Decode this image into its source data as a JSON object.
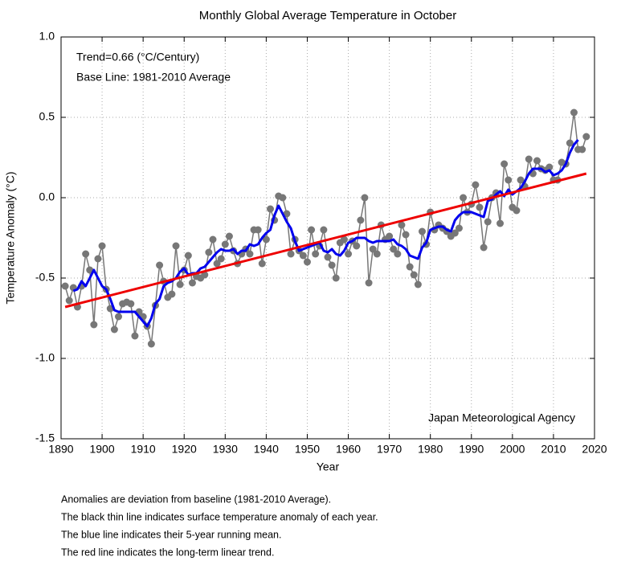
{
  "chart_data": {
    "type": "line",
    "title": "Monthly Global Average Temperature in October",
    "x_label": "Year",
    "y_label": "Temperature Anomaly (°C)",
    "annotations": [
      "Trend=0.66 (°C/Century)",
      "Base Line: 1981-2010 Average",
      "Japan Meteorological Agency"
    ],
    "notes": [
      "Anomalies are deviation from baseline (1981-2010 Average).",
      "The black thin line indicates surface temperature anomaly of each year.",
      "The blue line indicates their 5-year running mean.",
      "The red line indicates the long-term linear trend."
    ],
    "xlim": [
      1890,
      2020
    ],
    "xticks": [
      1890,
      1900,
      1910,
      1920,
      1930,
      1940,
      1950,
      1960,
      1970,
      1980,
      1990,
      2000,
      2010,
      2020
    ],
    "ylim": [
      -1.5,
      1.0
    ],
    "yticks": [
      {
        "value": -1.5,
        "label": "-1.5"
      },
      {
        "value": -1.0,
        "label": "-1.0"
      },
      -0.5,
      {
        "value": 0,
        "label": "0.0"
      },
      0.5,
      {
        "value": 1.0,
        "label": "1.0"
      }
    ],
    "grid": true,
    "x": [
      1891,
      1892,
      1893,
      1894,
      1895,
      1896,
      1897,
      1898,
      1899,
      1900,
      1901,
      1902,
      1903,
      1904,
      1905,
      1906,
      1907,
      1908,
      1909,
      1910,
      1911,
      1912,
      1913,
      1914,
      1915,
      1916,
      1917,
      1918,
      1919,
      1920,
      1921,
      1922,
      1923,
      1924,
      1925,
      1926,
      1927,
      1928,
      1929,
      1930,
      1931,
      1932,
      1933,
      1934,
      1935,
      1936,
      1937,
      1938,
      1939,
      1940,
      1941,
      1942,
      1943,
      1944,
      1945,
      1946,
      1947,
      1948,
      1949,
      1950,
      1951,
      1952,
      1953,
      1954,
      1955,
      1956,
      1957,
      1958,
      1959,
      1960,
      1961,
      1962,
      1963,
      1964,
      1965,
      1966,
      1967,
      1968,
      1969,
      1970,
      1971,
      1972,
      1973,
      1974,
      1975,
      1976,
      1977,
      1978,
      1979,
      1980,
      1981,
      1982,
      1983,
      1984,
      1985,
      1986,
      1987,
      1988,
      1989,
      1990,
      1991,
      1992,
      1993,
      1994,
      1995,
      1996,
      1997,
      1998,
      1999,
      2000,
      2001,
      2002,
      2003,
      2004,
      2005,
      2006,
      2007,
      2008,
      2009,
      2010,
      2011,
      2012,
      2013,
      2014,
      2015,
      2016,
      2017,
      2018
    ],
    "series": [
      {
        "color": "#777777",
        "markers": true,
        "values": [
          -0.55,
          -0.64,
          -0.56,
          -0.68,
          -0.55,
          -0.35,
          -0.45,
          -0.79,
          -0.38,
          -0.3,
          -0.57,
          -0.69,
          -0.82,
          -0.74,
          -0.66,
          -0.65,
          -0.66,
          -0.86,
          -0.71,
          -0.74,
          -0.8,
          -0.91,
          -0.67,
          -0.42,
          -0.52,
          -0.62,
          -0.6,
          -0.3,
          -0.54,
          -0.45,
          -0.36,
          -0.53,
          -0.49,
          -0.5,
          -0.48,
          -0.34,
          -0.26,
          -0.41,
          -0.38,
          -0.29,
          -0.24,
          -0.33,
          -0.41,
          -0.35,
          -0.32,
          -0.35,
          -0.2,
          -0.2,
          -0.41,
          -0.26,
          -0.07,
          -0.14,
          0.01,
          0.0,
          -0.1,
          -0.35,
          -0.26,
          -0.33,
          -0.36,
          -0.4,
          -0.2,
          -0.35,
          -0.3,
          -0.2,
          -0.37,
          -0.42,
          -0.5,
          -0.28,
          -0.26,
          -0.35,
          -0.27,
          -0.3,
          -0.14,
          0.0,
          -0.53,
          -0.32,
          -0.35,
          -0.17,
          -0.26,
          -0.24,
          -0.32,
          -0.35,
          -0.17,
          -0.23,
          -0.43,
          -0.48,
          -0.54,
          -0.21,
          -0.29,
          -0.09,
          -0.2,
          -0.17,
          -0.19,
          -0.21,
          -0.24,
          -0.22,
          -0.19,
          0.0,
          -0.09,
          -0.04,
          0.08,
          -0.06,
          -0.31,
          -0.15,
          0.0,
          0.03,
          -0.16,
          0.21,
          0.11,
          -0.06,
          -0.08,
          0.11,
          0.07,
          0.24,
          0.15,
          0.23,
          0.18,
          0.17,
          0.19,
          0.11,
          0.11,
          0.22,
          0.21,
          0.34,
          0.53,
          0.3,
          0.3,
          0.38
        ]
      },
      {
        "color": "#0000ee",
        "markers": false,
        "values": [
          null,
          null,
          -0.58,
          -0.57,
          -0.52,
          -0.55,
          -0.5,
          -0.45,
          -0.5,
          -0.55,
          -0.57,
          -0.63,
          -0.7,
          -0.71,
          -0.71,
          -0.71,
          -0.71,
          -0.71,
          -0.74,
          -0.77,
          -0.8,
          -0.75,
          -0.66,
          -0.63,
          -0.55,
          -0.53,
          -0.52,
          -0.5,
          -0.46,
          -0.44,
          -0.48,
          -0.47,
          -0.47,
          -0.44,
          -0.43,
          -0.4,
          -0.37,
          -0.34,
          -0.32,
          -0.33,
          -0.33,
          -0.32,
          -0.35,
          -0.33,
          -0.33,
          -0.29,
          -0.3,
          -0.29,
          -0.25,
          -0.22,
          -0.2,
          -0.11,
          -0.05,
          -0.1,
          -0.15,
          -0.19,
          -0.27,
          -0.33,
          -0.32,
          -0.31,
          -0.3,
          -0.29,
          -0.28,
          -0.33,
          -0.34,
          -0.32,
          -0.35,
          -0.36,
          -0.33,
          -0.28,
          -0.27,
          -0.25,
          -0.25,
          -0.25,
          -0.27,
          -0.28,
          -0.27,
          -0.27,
          -0.27,
          -0.27,
          -0.26,
          -0.29,
          -0.3,
          -0.32,
          -0.36,
          -0.37,
          -0.38,
          -0.31,
          -0.28,
          -0.2,
          -0.19,
          -0.18,
          -0.18,
          -0.2,
          -0.21,
          -0.14,
          -0.11,
          -0.09,
          -0.09,
          -0.09,
          -0.1,
          -0.11,
          -0.12,
          -0.02,
          -0.01,
          0.02,
          0.04,
          0.01,
          0.05,
          0.02,
          0.04,
          0.06,
          0.1,
          0.15,
          0.18,
          0.18,
          0.18,
          0.16,
          0.17,
          0.14,
          0.15,
          0.17,
          0.21,
          0.28,
          0.33,
          0.36,
          null,
          null
        ]
      }
    ],
    "trend": {
      "color": "#ee0000",
      "x": [
        1891,
        2018
      ],
      "values": [
        -0.68,
        0.15
      ]
    }
  }
}
